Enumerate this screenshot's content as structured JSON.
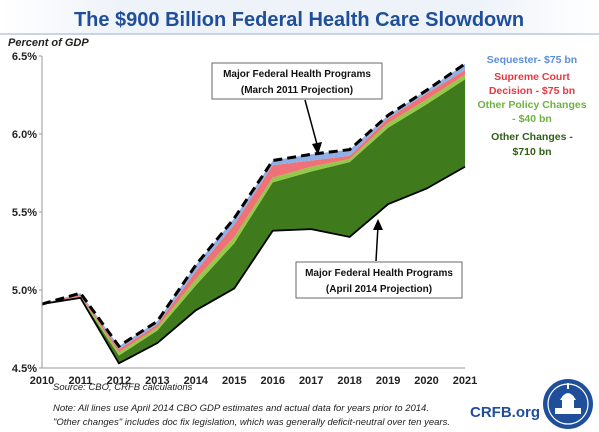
{
  "chart_data": {
    "type": "area",
    "title": "The $900 Billion Federal Health Care Slowdown",
    "ylabel": "Percent of GDP",
    "x": [
      2010,
      2011,
      2012,
      2013,
      2014,
      2015,
      2016,
      2017,
      2018,
      2019,
      2020,
      2021
    ],
    "ylim": [
      4.5,
      6.5
    ],
    "yticks": [
      "4.5%",
      "5.0%",
      "5.5%",
      "6.0%",
      "6.5%"
    ],
    "xtick_labels": [
      "2010",
      "2011",
      "2012",
      "2013",
      "2014",
      "2015",
      "2016",
      "2017",
      "2018",
      "2019",
      "2020",
      "2021"
    ],
    "grid": false,
    "lines": [
      {
        "name": "Major Federal Health Programs (April 2014 Projection)",
        "style": "solid",
        "color": "#000000",
        "values": [
          4.91,
          4.95,
          4.53,
          4.66,
          4.87,
          5.01,
          5.38,
          5.39,
          5.34,
          5.55,
          5.65,
          5.79
        ]
      },
      {
        "name": "Major Federal Health Programs (March 2011 Projection)",
        "style": "dashed",
        "color": "#000000",
        "values": [
          4.91,
          4.98,
          4.64,
          4.8,
          5.16,
          5.46,
          5.83,
          5.87,
          5.9,
          6.12,
          6.28,
          6.45
        ]
      }
    ],
    "series": [
      {
        "name": "Other Changes",
        "color": "#3f7a1c",
        "values": [
          4.91,
          4.95,
          4.58,
          4.74,
          5.03,
          5.3,
          5.69,
          5.76,
          5.82,
          6.04,
          6.19,
          6.35
        ]
      },
      {
        "name": "Other Policy Changes",
        "color": "#93c849",
        "values": [
          4.91,
          4.96,
          4.6,
          4.76,
          5.07,
          5.34,
          5.72,
          5.79,
          5.84,
          6.07,
          6.22,
          6.38
        ]
      },
      {
        "name": "Supreme Court Decision",
        "color": "#ee7276",
        "values": [
          4.91,
          4.97,
          4.62,
          4.78,
          5.12,
          5.42,
          5.8,
          5.83,
          5.86,
          6.1,
          6.26,
          6.41
        ]
      },
      {
        "name": "Sequester",
        "color": "#8fb0e6",
        "values": [
          4.91,
          4.98,
          4.64,
          4.8,
          5.16,
          5.46,
          5.83,
          5.87,
          5.9,
          6.12,
          6.28,
          6.45
        ]
      }
    ],
    "annotations": {
      "march_line1": "Major Federal Health Programs",
      "march_line2": "(March 2011  Projection)",
      "april_line1": "Major Federal Health Programs",
      "april_line2": "(April 2014 Projection)"
    },
    "side_labels": [
      {
        "lines": [
          "Sequester- $75 bn"
        ],
        "color": "#5b8edb"
      },
      {
        "lines": [
          "Supreme Court",
          "Decision - $75 bn"
        ],
        "color": "#e8383f"
      },
      {
        "lines": [
          "Other Policy Changes",
          "- $40 bn"
        ],
        "color": "#6db33f"
      },
      {
        "lines": [
          "Other Changes -",
          "$710 bn"
        ],
        "color": "#2f5f14"
      }
    ]
  },
  "source": "Source: CBO, CRFB calculations",
  "note1": "Note: All lines use April 2014 CBO GDP estimates and actual data for years prior to 2014.",
  "note2": "\"Other changes\" includes doc fix legislation, which was generally deficit-neutral over ten years.",
  "logo": "CRFB.org"
}
